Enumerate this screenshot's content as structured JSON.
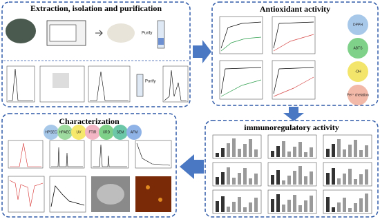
{
  "panels": {
    "extraction": {
      "title": "Extraction, isolation and purification",
      "labels": [
        "Purify",
        "Purify"
      ]
    },
    "antioxidant": {
      "title": "Antioxidant  activity",
      "assays": [
        "DPPH",
        "ABTS",
        "·OH",
        "Fe²⁺ chelation"
      ]
    },
    "immunoregulatory": {
      "title": "immunoregulatory activity"
    },
    "characterization": {
      "title": "Characterization",
      "methods": [
        "HPSEC",
        "HPAEC",
        "UV",
        "FTIR",
        "XRD",
        "SEM",
        "AFM"
      ]
    }
  }
}
